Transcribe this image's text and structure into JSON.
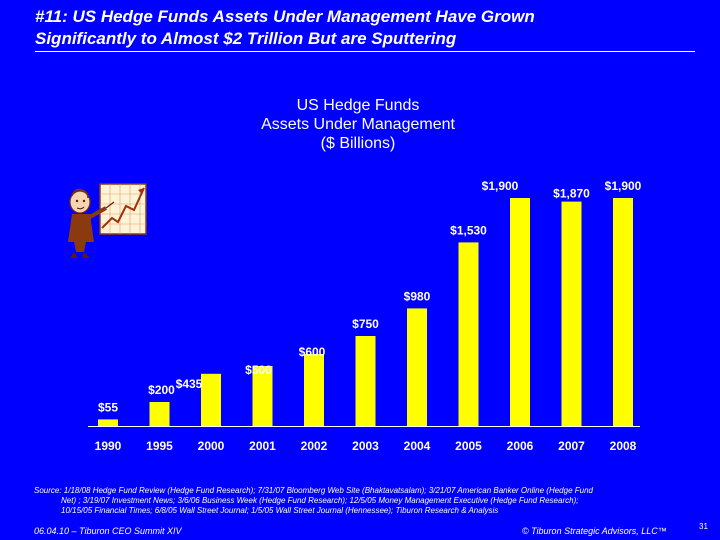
{
  "slide": {
    "title_line1": "#11: US Hedge Funds Assets Under Management Have Grown",
    "title_line2": "Significantly to Almost $2 Trillion But are Sputtering"
  },
  "chart_data": {
    "type": "bar",
    "title_lines": [
      "US Hedge Funds",
      "Assets Under Management",
      "($ Billions)"
    ],
    "categories": [
      "1990",
      "1995",
      "2000",
      "2001",
      "2002",
      "2003",
      "2004",
      "2005",
      "2006",
      "2007",
      "2008"
    ],
    "values": [
      55,
      200,
      435,
      500,
      600,
      750,
      980,
      1530,
      1900,
      1870,
      1900
    ],
    "data_labels": [
      "$55",
      "$200",
      "$435",
      "$500",
      "$600",
      "$750",
      "$980",
      "$1,530",
      "$1,900",
      "$1,870",
      "$1,900"
    ],
    "ylim": [
      0,
      1900
    ],
    "bar_color": "#FFFF00",
    "label_color": "#FFFFFF",
    "grid": false,
    "legend": "none"
  },
  "source": {
    "line1": "Source:  1/18/08 Hedge Fund Review (Hedge Fund Research); 7/31/07 Bloomberg Web Site (Bhaktavatsalam); 3/21/07 American Banker Online (Hedge Fund",
    "line2": "Net) ; 3/19/07 Investment News; 3/6/06 Business Week (Hedge Fund Research); 12/5/05 Money Management Executive (Hedge Fund Research);",
    "line3": "10/15/05 Financial Times; 6/8/05 Wall Street Journal; 1/5/05 Wall Street Journal (Hennessee); Tiburon Research & Analysis"
  },
  "footer": {
    "left": "06.04.10 – Tiburon CEO Summit XIV",
    "right": "© Tiburon Strategic Advisors, LLC™",
    "page": "31"
  },
  "colors": {
    "background": "#0000FF",
    "text": "#FFFFFF",
    "bars": "#FFFF00"
  },
  "icons": {
    "mascot": "presenter-with-growth-chart-icon"
  }
}
